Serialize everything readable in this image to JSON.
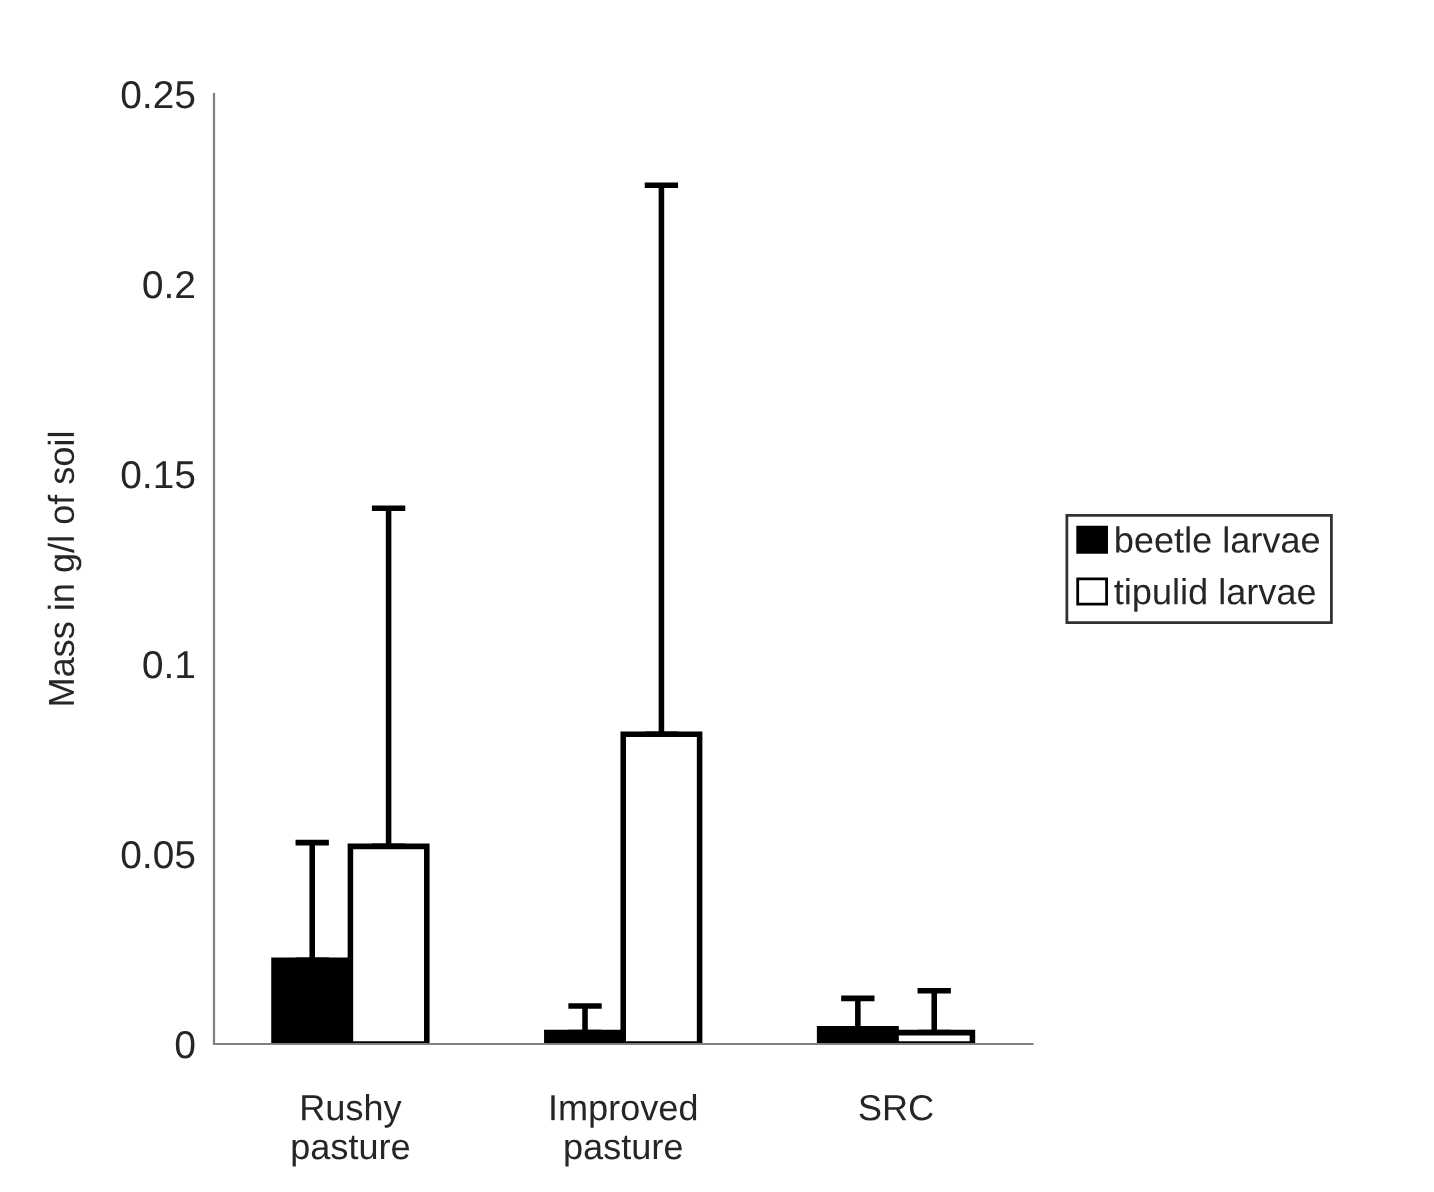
{
  "chart_data": {
    "type": "bar",
    "ylabel": "Mass in g/l of soil",
    "categories": [
      "Rushy\npasture",
      "Improved\npasture",
      "SRC"
    ],
    "series": [
      {
        "name": "beetle larvae",
        "color": "#000000",
        "values": [
          0.022,
          0.003,
          0.004
        ],
        "errors": [
          [
            0.022,
            0.053
          ],
          [
            0.003,
            0.01
          ],
          [
            0.004,
            0.012
          ]
        ]
      },
      {
        "name": "tipulid larvae",
        "color": "#ffffff",
        "values": [
          0.052,
          0.0815,
          0.003
        ],
        "errors": [
          [
            0.052,
            0.141
          ],
          [
            0.0815,
            0.226
          ],
          [
            0.003,
            0.014
          ]
        ]
      }
    ],
    "ylim": [
      0,
      0.25
    ],
    "yticks": [
      0,
      0.05,
      0.1,
      0.15,
      0.2,
      0.25
    ],
    "grid": false,
    "legend": "right"
  }
}
